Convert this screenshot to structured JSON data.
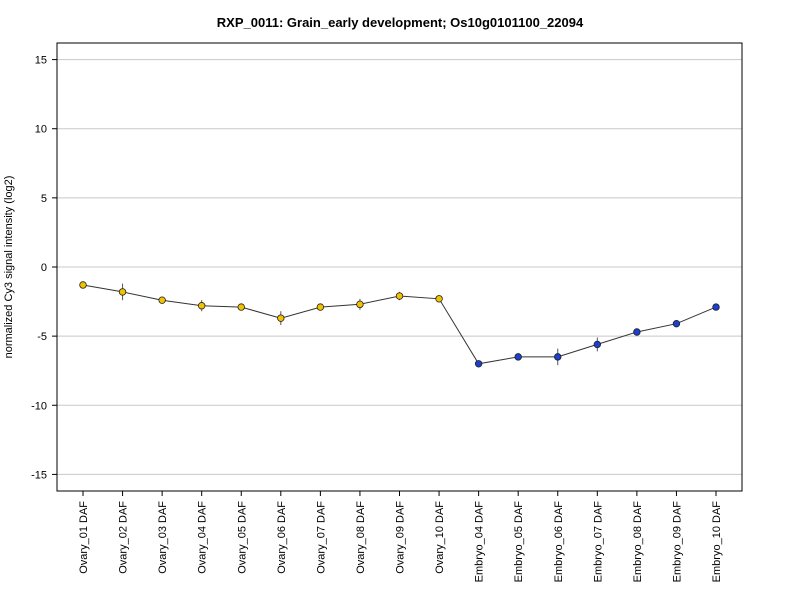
{
  "chart_data": {
    "type": "line",
    "title": "RXP_0011: Grain_early development; Os10g0101100_22094",
    "ylabel": "normalized Cy3 signal intensity (log2)",
    "xlabel": "",
    "ylim": [
      -16.2,
      16.2
    ],
    "yticks": [
      -15,
      -10,
      -5,
      0,
      5,
      10,
      15
    ],
    "ytick_labels": [
      "-15",
      "-10",
      "-5",
      "0",
      "5",
      "10",
      "15"
    ],
    "grid": true,
    "categories": [
      "Ovary_01 DAF",
      "Ovary_02 DAF",
      "Ovary_03 DAF",
      "Ovary_04 DAF",
      "Ovary_05 DAF",
      "Ovary_06 DAF",
      "Ovary_07 DAF",
      "Ovary_08 DAF",
      "Ovary_09 DAF",
      "Ovary_10 DAF",
      "Embryo_04 DAF",
      "Embryo_05 DAF",
      "Embryo_06 DAF",
      "Embryo_07 DAF",
      "Embryo_08 DAF",
      "Embryo_09 DAF",
      "Embryo_10 DAF"
    ],
    "values": [
      -1.3,
      -1.8,
      -2.4,
      -2.8,
      -2.9,
      -3.7,
      -2.9,
      -2.7,
      -2.1,
      -2.3,
      -7.0,
      -6.5,
      -6.5,
      -5.6,
      -4.7,
      -4.1,
      -2.9
    ],
    "errors": [
      0.2,
      0.6,
      0.2,
      0.4,
      0.2,
      0.5,
      0.2,
      0.4,
      0.3,
      0.2,
      0.2,
      0.2,
      0.6,
      0.5,
      0.2,
      0.2,
      0.2
    ],
    "point_colors": [
      "#f2c200",
      "#f2c200",
      "#f2c200",
      "#f2c200",
      "#f2c200",
      "#f2c200",
      "#f2c200",
      "#f2c200",
      "#f2c200",
      "#f2c200",
      "#1a3fd1",
      "#1a3fd1",
      "#1a3fd1",
      "#1a3fd1",
      "#1a3fd1",
      "#1a3fd1",
      "#1a3fd1"
    ]
  }
}
